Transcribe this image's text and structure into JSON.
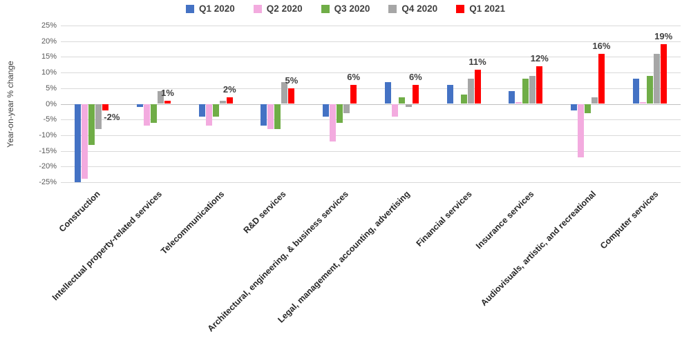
{
  "chart_data": {
    "type": "bar",
    "title": "",
    "ylabel": "Year-on-year % change",
    "ylim": [
      -25,
      25
    ],
    "ytick_step": 5,
    "ytick_labels": [
      "25%",
      "20%",
      "15%",
      "10%",
      "5%",
      "0%",
      "-5%",
      "-10%",
      "-15%",
      "-20%",
      "-25%"
    ],
    "grid": "horizontal",
    "legend_position": "top",
    "categories": [
      "Construction",
      "Intellectual property-related services",
      "Telecommunications",
      "R&D services",
      "Architectural, engineering, & business services",
      "Legal, management, accounting, advertising",
      "Financial services",
      "Insurance services",
      "Audiovisuals, artistic, and recreational",
      "Computer services"
    ],
    "series": [
      {
        "name": "Q1 2020",
        "color": "#4472C4",
        "values": [
          -25,
          -1,
          -4,
          -7,
          -4,
          7,
          6,
          4,
          -2,
          8
        ]
      },
      {
        "name": "Q2 2020",
        "color": "#F3ABDF",
        "values": [
          -24,
          -7,
          -7,
          -8,
          -12,
          -4,
          0,
          0.5,
          -17,
          0.5
        ]
      },
      {
        "name": "Q3 2020",
        "color": "#70AD47",
        "values": [
          -13,
          -6,
          -4,
          -8,
          -6,
          2,
          3,
          8,
          -3,
          9
        ]
      },
      {
        "name": "Q4 2020",
        "color": "#A6A6A6",
        "values": [
          -8,
          4,
          1,
          7,
          -3,
          -1,
          8,
          9,
          2,
          16
        ]
      },
      {
        "name": "Q1 2021",
        "color": "#FF0000",
        "values": [
          -2,
          1,
          2,
          5,
          6,
          6,
          11,
          12,
          16,
          19
        ]
      }
    ],
    "data_labels": {
      "series": "Q1 2021",
      "values": [
        "-2%",
        "1%",
        "2%",
        "5%",
        "6%",
        "6%",
        "11%",
        "12%",
        "16%",
        "19%"
      ]
    }
  }
}
